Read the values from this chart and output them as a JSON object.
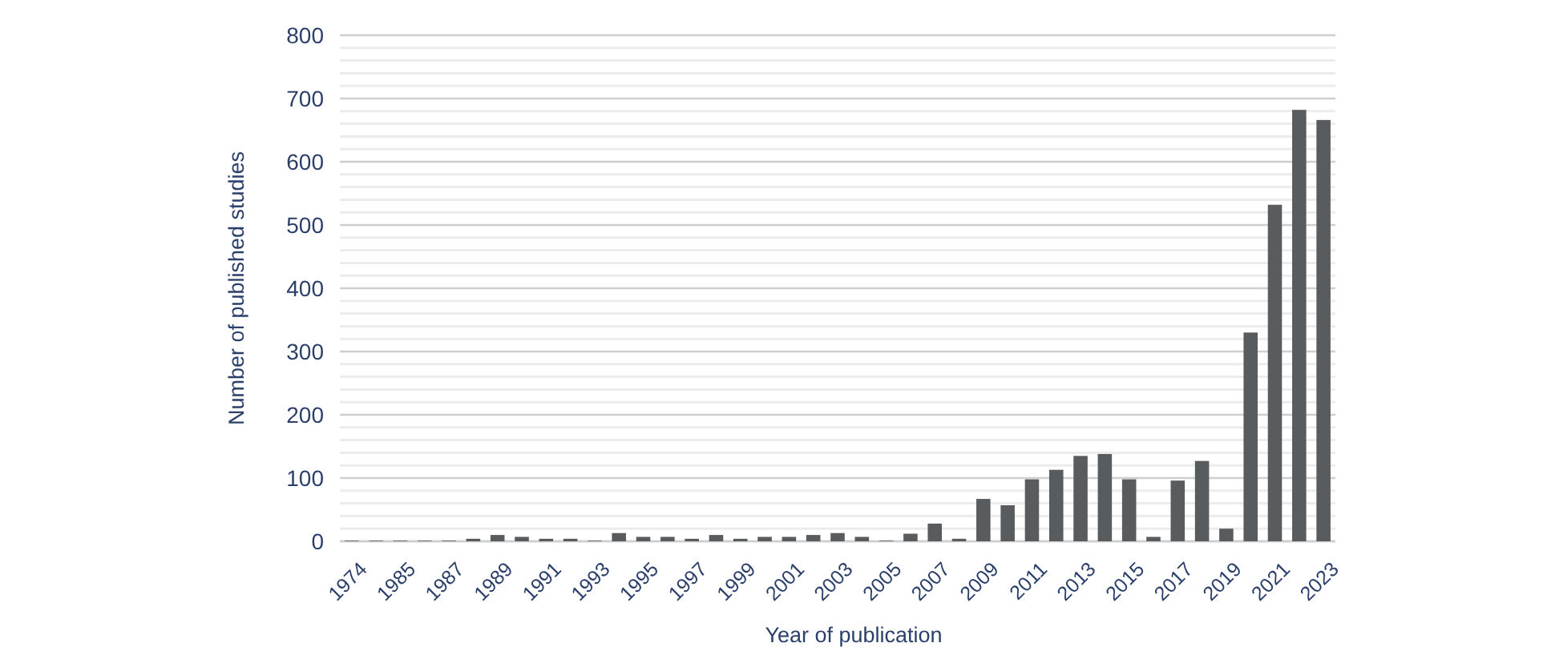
{
  "chart_data": {
    "type": "bar",
    "xlabel": "Year of publication",
    "ylabel": "Number of published studies",
    "categories": [
      "1974",
      null,
      "1985",
      null,
      "1987",
      null,
      "1989",
      null,
      "1991",
      null,
      "1993",
      null,
      "1995",
      null,
      "1997",
      null,
      "1999",
      null,
      "2001",
      null,
      "2003",
      null,
      "2005",
      null,
      "2007",
      null,
      "2009",
      null,
      "2011",
      null,
      "2013",
      null,
      "2015",
      null,
      "2017",
      null,
      "2019",
      null,
      "2021",
      null,
      "2023"
    ],
    "values": [
      1,
      1,
      1,
      1,
      1,
      4,
      10,
      7,
      4,
      4,
      1,
      13,
      7,
      7,
      4,
      10,
      4,
      7,
      7,
      10,
      13,
      7,
      1,
      12,
      28,
      4,
      67,
      57,
      98,
      113,
      135,
      138,
      98,
      7,
      96,
      127,
      20,
      330,
      532,
      682,
      666
    ],
    "color": "#595c5e",
    "ylim": [
      0,
      800
    ],
    "yticks": [
      0,
      {
        "value": 20,
        "label": null
      },
      {
        "value": 40,
        "label": null
      },
      {
        "value": 60,
        "label": null
      },
      {
        "value": 80,
        "label": null
      },
      100,
      {
        "value": 120,
        "label": null
      },
      {
        "value": 140,
        "label": null
      },
      {
        "value": 160,
        "label": null
      },
      {
        "value": 180,
        "label": null
      },
      200,
      {
        "value": 220,
        "label": null
      },
      {
        "value": 240,
        "label": null
      },
      {
        "value": 260,
        "label": null
      },
      {
        "value": 280,
        "label": null
      },
      300,
      {
        "value": 320,
        "label": null
      },
      {
        "value": 340,
        "label": null
      },
      {
        "value": 360,
        "label": null
      },
      {
        "value": 380,
        "label": null
      },
      400,
      {
        "value": 420,
        "label": null
      },
      {
        "value": 440,
        "label": null
      },
      {
        "value": 460,
        "label": null
      },
      {
        "value": 480,
        "label": null
      },
      500,
      {
        "value": 520,
        "label": null
      },
      {
        "value": 540,
        "label": null
      },
      {
        "value": 560,
        "label": null
      },
      {
        "value": 580,
        "label": null
      },
      600,
      {
        "value": 620,
        "label": null
      },
      {
        "value": 640,
        "label": null
      },
      {
        "value": 660,
        "label": null
      },
      {
        "value": 680,
        "label": null
      },
      700,
      {
        "value": 720,
        "label": null
      },
      {
        "value": 740,
        "label": null
      },
      {
        "value": 760,
        "label": null
      },
      {
        "value": 780,
        "label": null
      },
      800
    ],
    "grid": "y"
  }
}
